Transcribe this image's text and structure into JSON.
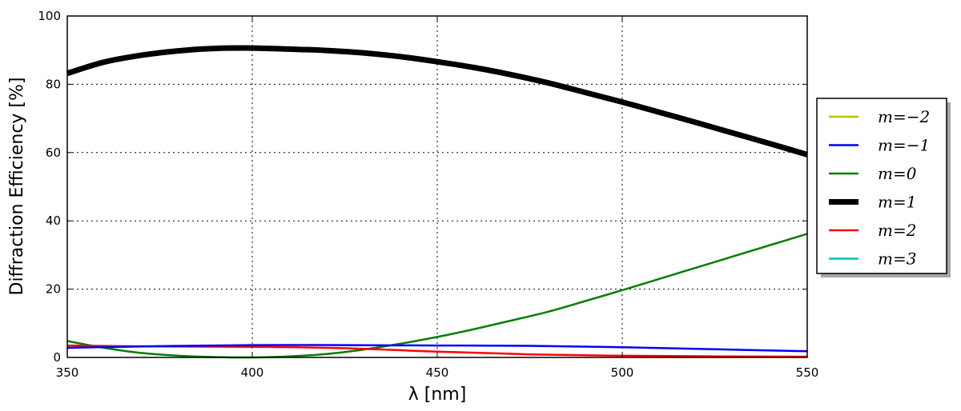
{
  "chart_data": {
    "type": "line",
    "title": "",
    "xlabel": "λ [nm]",
    "ylabel": "Diffraction Efficiency [%]",
    "xlim": [
      350,
      550
    ],
    "ylim": [
      0,
      100
    ],
    "xticks": [
      "350",
      "400",
      "450",
      "500",
      "550"
    ],
    "yticks": [
      "0",
      "20",
      "40",
      "60",
      "80",
      "100"
    ],
    "grid": true,
    "legend_position": "right",
    "series": [
      {
        "name": "m=−2",
        "color": "#bfbf00",
        "width": 2.5,
        "x": [],
        "y": []
      },
      {
        "name": "m=−1",
        "color": "#0000ff",
        "width": 2.5,
        "x": [
          350,
          375,
          400,
          425,
          450,
          475,
          500,
          525,
          550
        ],
        "y": [
          2.8,
          3.3,
          3.6,
          3.6,
          3.5,
          3.4,
          3.0,
          2.4,
          1.8
        ]
      },
      {
        "name": "m=0",
        "color": "#007f00",
        "width": 2.5,
        "x": [
          350,
          360,
          370,
          380,
          390,
          400,
          410,
          420,
          430,
          440,
          450,
          460,
          470,
          480,
          490,
          500,
          510,
          520,
          530,
          540,
          550
        ],
        "y": [
          4.8,
          2.8,
          1.3,
          0.5,
          0.1,
          0.0,
          0.3,
          1.0,
          2.3,
          4.0,
          6.0,
          8.3,
          10.8,
          13.4,
          16.5,
          19.7,
          23.0,
          26.3,
          29.6,
          32.9,
          36.2
        ]
      },
      {
        "name": "m=1",
        "color": "#000000",
        "width": 7,
        "x": [
          350,
          360,
          370,
          380,
          390,
          400,
          410,
          420,
          430,
          440,
          450,
          460,
          470,
          480,
          490,
          500,
          510,
          520,
          530,
          540,
          550
        ],
        "y": [
          83.2,
          86.5,
          88.5,
          89.8,
          90.5,
          90.6,
          90.3,
          89.9,
          89.2,
          88.1,
          86.6,
          84.9,
          82.8,
          80.4,
          77.6,
          74.8,
          71.8,
          68.8,
          65.7,
          62.6,
          59.4
        ]
      },
      {
        "name": "m=2",
        "color": "#ff0000",
        "width": 2.5,
        "x": [
          350,
          375,
          400,
          425,
          450,
          475,
          500,
          525,
          550
        ],
        "y": [
          3.5,
          3.2,
          3.1,
          2.7,
          1.7,
          0.9,
          0.5,
          0.3,
          0.2
        ]
      },
      {
        "name": "m=3",
        "color": "#00bfbf",
        "width": 2.5,
        "x": [],
        "y": []
      }
    ]
  }
}
